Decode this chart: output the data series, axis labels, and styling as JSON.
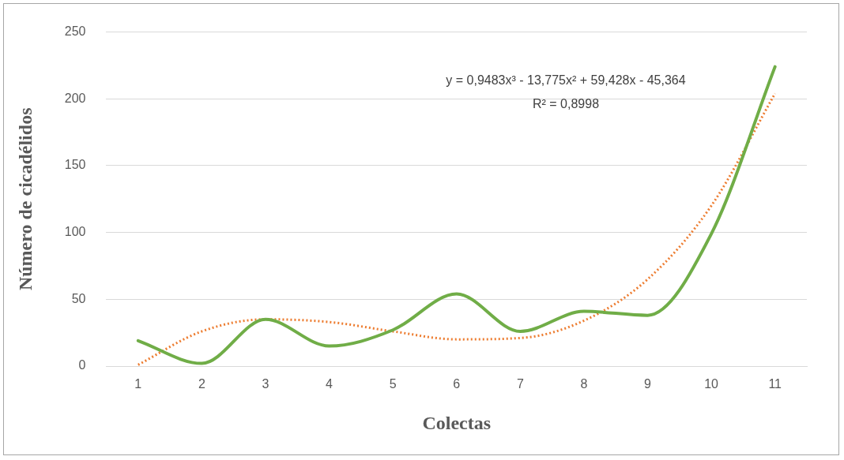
{
  "chart_data": {
    "type": "line",
    "xlabel": "Colectas",
    "ylabel": "Número de cicadélidos",
    "categories": [
      "1",
      "2",
      "3",
      "4",
      "5",
      "6",
      "7",
      "8",
      "9",
      "10",
      "11"
    ],
    "series": [
      {
        "color": "#70ad47",
        "values": [
          19,
          2,
          35,
          15,
          27,
          54,
          26,
          41,
          38,
          99,
          224
        ]
      },
      {
        "type": "line",
        "line_style": "dotted",
        "color": "#ed7d31",
        "values": [
          1,
          26,
          35,
          33,
          26,
          20,
          21,
          34,
          65,
          120,
          204
        ]
      }
    ],
    "ylim": [
      0,
      250
    ],
    "yticks": [
      0,
      50,
      100,
      150,
      200,
      250
    ],
    "grid": "y",
    "legend": false,
    "marker": "none",
    "annotations": [
      "y = 0,9483x³ - 13,775x² + 59,428x - 45,364",
      "R² = 0,8998"
    ]
  }
}
